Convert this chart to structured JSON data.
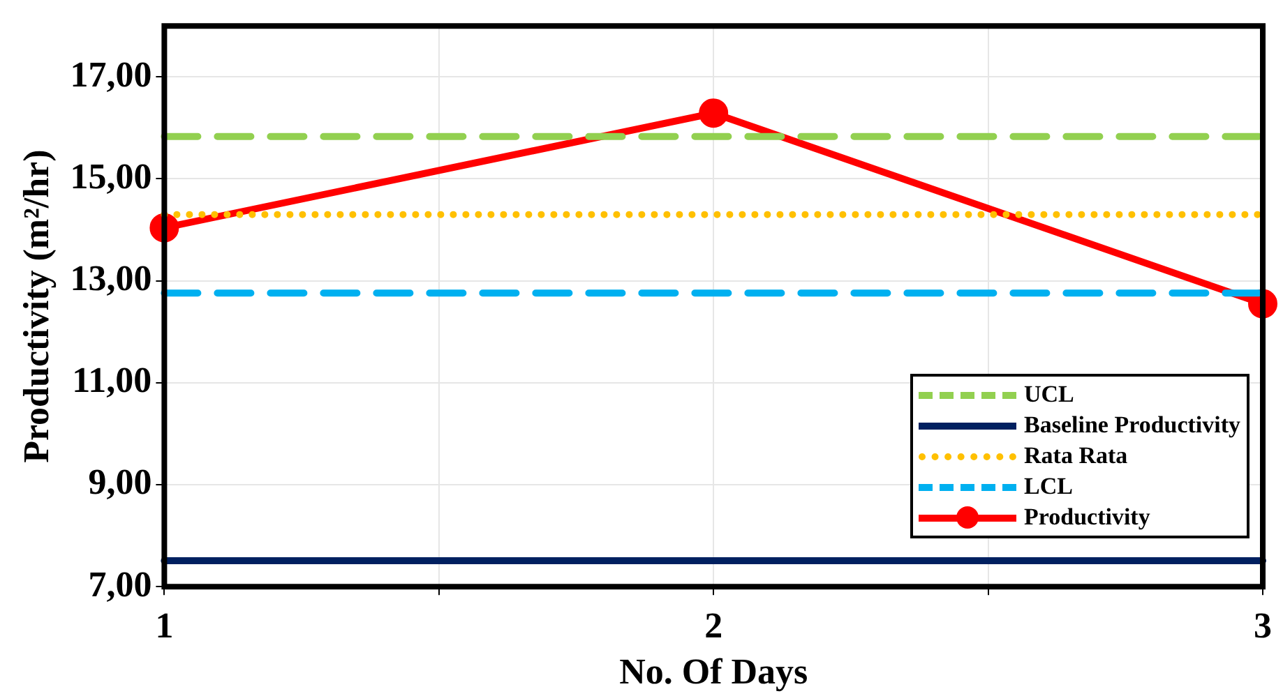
{
  "chart_data": {
    "type": "line",
    "xlabel": "No. Of Days",
    "ylabel": "Productivity (m²/hr)",
    "xlim": [
      1,
      3
    ],
    "xticks": [
      1,
      {
        "value": 1.5,
        "label": null
      },
      2,
      {
        "value": 2.5,
        "label": null
      },
      3
    ],
    "ylim": [
      7,
      18
    ],
    "yticks": [
      {
        "value": 7,
        "label": "7,00"
      },
      {
        "value": 9,
        "label": "9,00"
      },
      {
        "value": 11,
        "label": "11,00"
      },
      {
        "value": 13,
        "label": "13,00"
      },
      {
        "value": 15,
        "label": "15,00"
      },
      {
        "value": 17,
        "label": "17,00"
      }
    ],
    "grid": true,
    "legend": "bottom right",
    "series": [
      {
        "name": "UCL",
        "color": "#92d050",
        "x": [
          1,
          3
        ],
        "values": [
          15.83,
          15.83
        ],
        "line_style": "dashed",
        "marker": "none"
      },
      {
        "name": "Baseline Productivity",
        "color": "#002060",
        "x": [
          1,
          3
        ],
        "values": [
          7.51,
          7.51
        ],
        "line_style": "solid",
        "marker": "none"
      },
      {
        "name": "Rata Rata",
        "color": "#ffc000",
        "x": [
          1,
          3
        ],
        "values": [
          14.3,
          14.3
        ],
        "line_style": "dotted",
        "marker": "none"
      },
      {
        "name": "LCL",
        "color": "#00b0f0",
        "x": [
          1,
          3
        ],
        "values": [
          12.76,
          12.76
        ],
        "line_style": "dashed",
        "marker": "none"
      },
      {
        "name": "Productivity",
        "color": "#ff0000",
        "x": [
          1,
          2,
          3
        ],
        "values": [
          14.04,
          16.29,
          12.55
        ],
        "line_style": "solid",
        "marker": "circle"
      }
    ]
  }
}
